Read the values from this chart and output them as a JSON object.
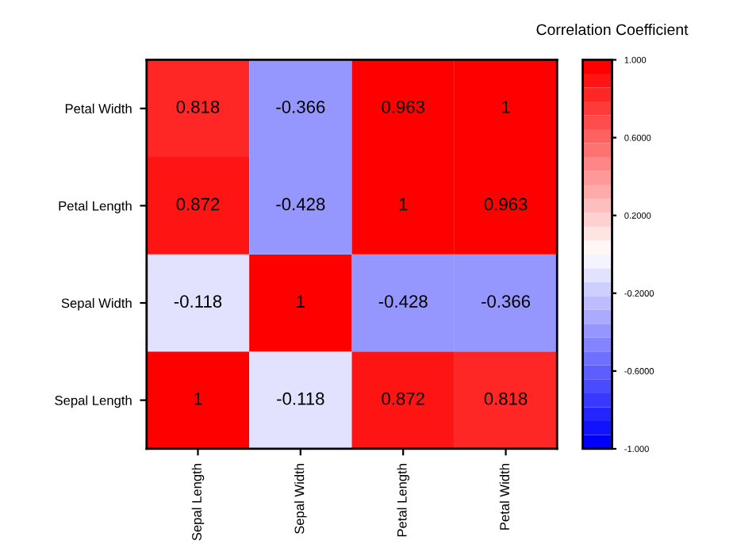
{
  "chart_data": {
    "type": "heatmap",
    "clabel": "Correlation Coefficient",
    "categories": [
      "Sepal Length",
      "Sepal Width",
      "Petal Length",
      "Petal Width"
    ],
    "y_categories": [
      "Petal Width",
      "Petal Length",
      "Sepal Width",
      "Sepal Length"
    ],
    "cells": [
      [
        0.818,
        -0.366,
        0.963,
        1
      ],
      [
        0.872,
        -0.428,
        1,
        0.963
      ],
      [
        -0.118,
        1,
        -0.428,
        -0.366
      ],
      [
        1,
        -0.118,
        0.872,
        0.818
      ]
    ],
    "data_labels": true,
    "clim": [
      -1,
      1
    ],
    "cticks": [
      {
        "value": -1,
        "label": "-1.000"
      },
      {
        "value": -0.6,
        "label": "-0.6000"
      },
      {
        "value": -0.2,
        "label": "-0.2000"
      },
      {
        "value": 0.2,
        "label": "0.2000"
      },
      {
        "value": 0.6,
        "label": "0.6000"
      },
      {
        "value": 1,
        "label": "1.000"
      }
    ]
  }
}
